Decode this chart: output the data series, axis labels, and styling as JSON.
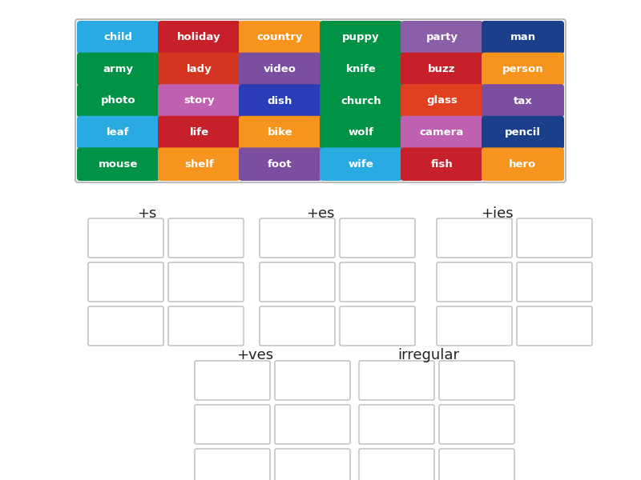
{
  "words": [
    [
      "child",
      "holiday",
      "country",
      "puppy",
      "party",
      "man"
    ],
    [
      "army",
      "lady",
      "video",
      "knife",
      "buzz",
      "person"
    ],
    [
      "photo",
      "story",
      "dish",
      "church",
      "glass",
      "tax"
    ],
    [
      "leaf",
      "life",
      "bike",
      "wolf",
      "camera",
      "pencil"
    ],
    [
      "mouse",
      "shelf",
      "foot",
      "wife",
      "fish",
      "hero"
    ]
  ],
  "colors": [
    [
      "#29ABE2",
      "#C8202A",
      "#F7941D",
      "#009245",
      "#8B5EA8",
      "#1B3F8B"
    ],
    [
      "#009245",
      "#D43520",
      "#7B4EA0",
      "#009245",
      "#C8202A",
      "#F7941D"
    ],
    [
      "#009245",
      "#C060B0",
      "#2B3CB7",
      "#009245",
      "#E04020",
      "#7B4EA0"
    ],
    [
      "#29ABE2",
      "#C8202A",
      "#F7941D",
      "#009245",
      "#C060B0",
      "#1B3F8B"
    ],
    [
      "#009245",
      "#F7941D",
      "#7B4EA0",
      "#29ABE2",
      "#C8202A",
      "#F7941D"
    ]
  ],
  "bg_color": "#FFFFFF",
  "text_color": "#FFFFFF",
  "word_font_size": 9.5,
  "label_font_size": 13,
  "grid_outer_color": "#BBBBBB",
  "grid_outer_bg": "#F8F8F8",
  "drop_box_color": "#BBBBBB",
  "drop_box_bg": "#FFFFFF",
  "label_color": "#222222"
}
